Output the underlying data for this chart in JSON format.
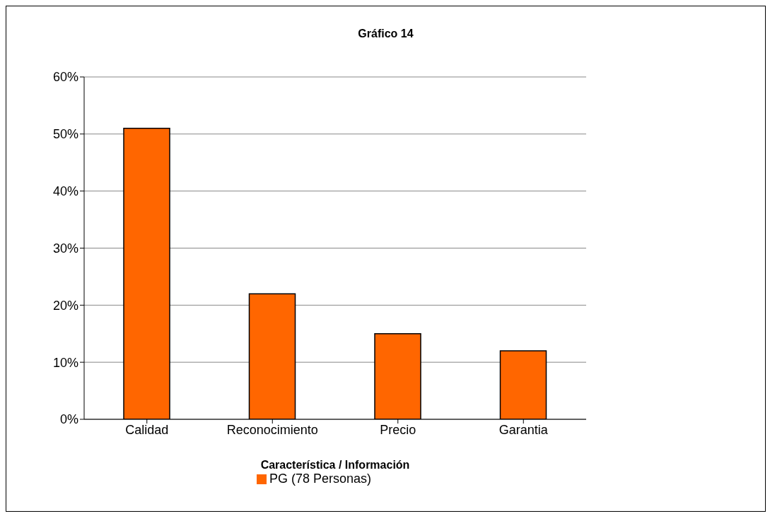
{
  "chart_data": {
    "type": "bar",
    "title": "Gráfico 14",
    "xlabel": "Característica / Información",
    "categories": [
      "Calidad",
      "Reconocimiento",
      "Precio",
      "Garantia"
    ],
    "series": [
      {
        "name": "PG (78 Personas)",
        "color": "#ff6600",
        "values": [
          51,
          22,
          15,
          12
        ]
      }
    ],
    "ylim": [
      0,
      60
    ],
    "yticks": [
      {
        "value": 0,
        "label": "0%"
      },
      {
        "value": 10,
        "label": "10%"
      },
      {
        "value": 20,
        "label": "20%"
      },
      {
        "value": 30,
        "label": "30%"
      },
      {
        "value": 40,
        "label": "40%"
      },
      {
        "value": 50,
        "label": "50%"
      },
      {
        "value": 60,
        "label": "60%"
      }
    ],
    "grid": "y",
    "legend": "bottom"
  }
}
